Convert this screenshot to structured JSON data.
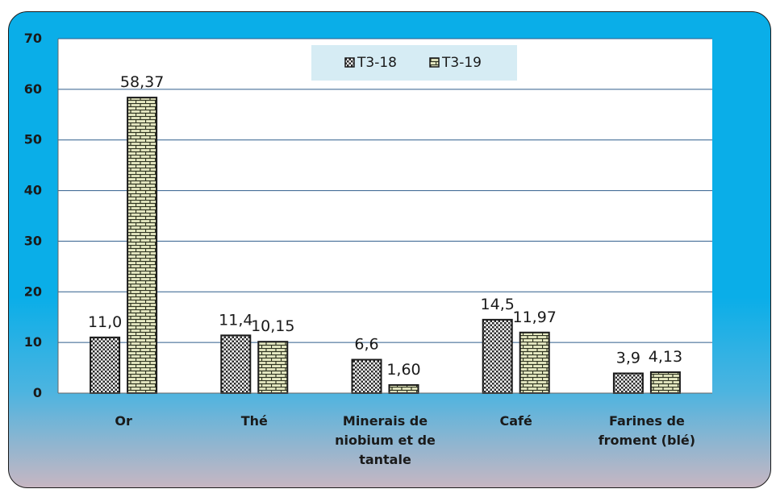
{
  "chart_data": {
    "type": "bar",
    "title": "",
    "xlabel": "",
    "ylabel": "",
    "ylim": [
      0,
      70
    ],
    "yticks": [
      0,
      10,
      20,
      30,
      40,
      50,
      60,
      70
    ],
    "grid": true,
    "legend_position": "top-center",
    "categories": [
      [
        "Or"
      ],
      [
        "Thé"
      ],
      [
        "Minerais de",
        "niobium et de",
        "tantale"
      ],
      [
        "Café"
      ],
      [
        "Farines de",
        "froment (blé)"
      ]
    ],
    "series": [
      {
        "name": "T3-18",
        "values": [
          11.0,
          11.4,
          6.6,
          14.5,
          3.9
        ],
        "labels": [
          "11,0",
          "11,4",
          "6,6",
          "14,5",
          "3,9"
        ],
        "pattern": "checker",
        "color": "#2b2b2b"
      },
      {
        "name": "T3-19",
        "values": [
          58.37,
          10.15,
          1.6,
          11.97,
          4.13
        ],
        "labels": [
          "58,37",
          "10,15",
          "1,60",
          "11,97",
          "4,13"
        ],
        "pattern": "brick",
        "color": "#e6e9c2"
      }
    ]
  }
}
